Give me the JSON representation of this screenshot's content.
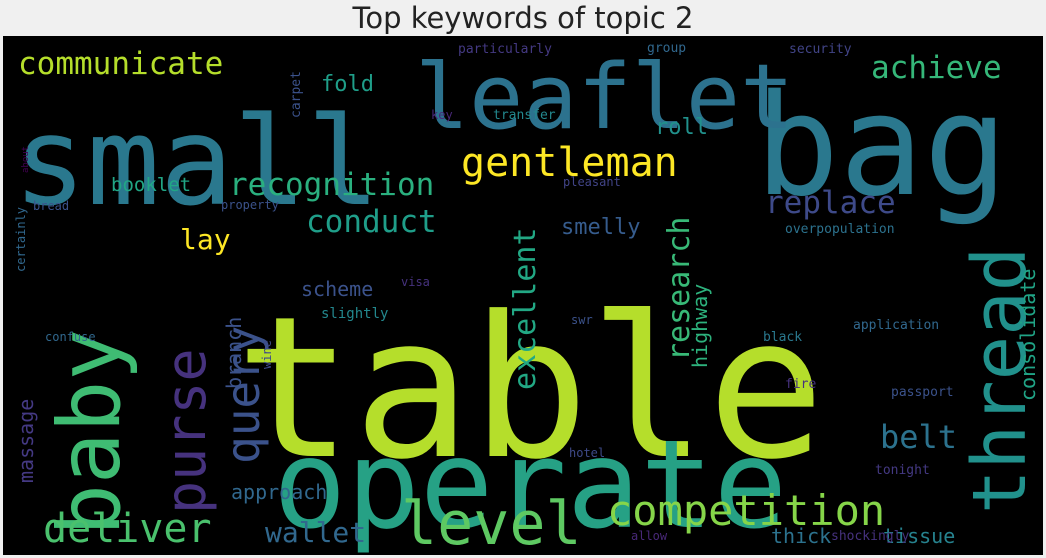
{
  "chart_data": {
    "type": "wordcloud",
    "title": "Top keywords of topic 2",
    "background": "#000000",
    "words": [
      {
        "text": "table",
        "color": "#b5de2b"
      },
      {
        "text": "small",
        "color": "#2a788e"
      },
      {
        "text": "bag",
        "color": "#2a788e"
      },
      {
        "text": "operate",
        "color": "#26a185"
      },
      {
        "text": "leaflet",
        "color": "#2c728e"
      },
      {
        "text": "baby",
        "color": "#3fbc73"
      },
      {
        "text": "thread",
        "color": "#21918c"
      },
      {
        "text": "level",
        "color": "#5ec962"
      },
      {
        "text": "purse",
        "color": "#46327e"
      },
      {
        "text": "query",
        "color": "#3b528b"
      },
      {
        "text": "gentleman",
        "color": "#fde725"
      },
      {
        "text": "competition",
        "color": "#86d549"
      },
      {
        "text": "deliver",
        "color": "#4ac16d"
      },
      {
        "text": "communicate",
        "color": "#b5de2b"
      },
      {
        "text": "achieve",
        "color": "#35b779"
      },
      {
        "text": "recognition",
        "color": "#2ab07f"
      },
      {
        "text": "conduct",
        "color": "#1f9e89"
      },
      {
        "text": "research",
        "color": "#38b977"
      },
      {
        "text": "excellent",
        "color": "#22a884"
      },
      {
        "text": "replace",
        "color": "#3e4a89"
      },
      {
        "text": "belt",
        "color": "#2c728e"
      },
      {
        "text": "wallet",
        "color": "#31688e"
      },
      {
        "text": "lay",
        "color": "#fde725"
      },
      {
        "text": "fold",
        "color": "#1f9e89"
      },
      {
        "text": "roll",
        "color": "#21918c"
      },
      {
        "text": "booklet",
        "color": "#21a685"
      },
      {
        "text": "smelly",
        "color": "#365c8d"
      },
      {
        "text": "scheme",
        "color": "#3b528b"
      },
      {
        "text": "approach",
        "color": "#31688e"
      },
      {
        "text": "highway",
        "color": "#2db27d"
      },
      {
        "text": "consolidate",
        "color": "#20a486"
      },
      {
        "text": "thick",
        "color": "#2c728e"
      },
      {
        "text": "tissue",
        "color": "#26828e"
      },
      {
        "text": "branch",
        "color": "#3b528b"
      },
      {
        "text": "massage",
        "color": "#443983"
      },
      {
        "text": "slightly",
        "color": "#23888e"
      },
      {
        "text": "particularly",
        "color": "#443983"
      },
      {
        "text": "group",
        "color": "#31688e"
      },
      {
        "text": "security",
        "color": "#414487"
      },
      {
        "text": "carpet",
        "color": "#3b528b"
      },
      {
        "text": "key",
        "color": "#482878"
      },
      {
        "text": "transfer",
        "color": "#23888e"
      },
      {
        "text": "pleasant",
        "color": "#414487"
      },
      {
        "text": "property",
        "color": "#3b528b"
      },
      {
        "text": "overpopulation",
        "color": "#2c728e"
      },
      {
        "text": "visa",
        "color": "#46327e"
      },
      {
        "text": "swr",
        "color": "#3b528b"
      },
      {
        "text": "application",
        "color": "#31688e"
      },
      {
        "text": "black",
        "color": "#2a788e"
      },
      {
        "text": "wine",
        "color": "#3e4a89"
      },
      {
        "text": "confuse",
        "color": "#31688e"
      },
      {
        "text": "fire",
        "color": "#46327e"
      },
      {
        "text": "passport",
        "color": "#3b528b"
      },
      {
        "text": "hotel",
        "color": "#3e4a89"
      },
      {
        "text": "tonight",
        "color": "#443983"
      },
      {
        "text": "shockingly",
        "color": "#46327e"
      },
      {
        "text": "allow",
        "color": "#482878"
      },
      {
        "text": "bread",
        "color": "#3b528b"
      },
      {
        "text": "certainly",
        "color": "#31688e"
      },
      {
        "text": "about",
        "color": "#440154"
      }
    ]
  }
}
